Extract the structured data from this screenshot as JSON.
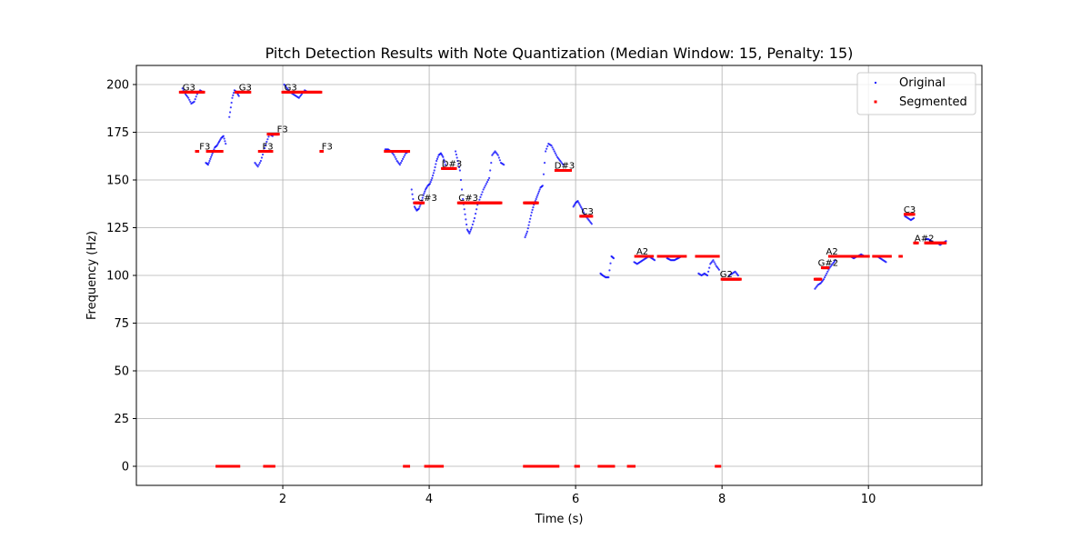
{
  "chart_data": {
    "type": "scatter",
    "title": "Pitch Detection Results with Note Quantization (Median Window: 15, Penalty: 15)",
    "xlabel": "Time (s)",
    "ylabel": "Frequency (Hz)",
    "xlim": [
      0.0,
      11.55
    ],
    "ylim": [
      -10,
      210
    ],
    "xticks": [
      2,
      4,
      6,
      8,
      10
    ],
    "yticks": [
      0,
      25,
      50,
      75,
      100,
      125,
      150,
      175,
      200
    ],
    "grid": true,
    "legend": {
      "placement": "upper-right"
    },
    "series": [
      {
        "name": "Original",
        "color": "#0000ff",
        "segments": [
          [
            [
              0.63,
              198
            ],
            [
              0.67,
              195
            ],
            [
              0.71,
              193
            ],
            [
              0.75,
              190
            ],
            [
              0.79,
              191
            ],
            [
              0.83,
              195
            ],
            [
              0.87,
              197
            ],
            [
              0.91,
              196
            ]
          ],
          [
            [
              0.95,
              159
            ],
            [
              0.98,
              158
            ],
            [
              1.01,
              161
            ],
            [
              1.04,
              164
            ],
            [
              1.07,
              167
            ],
            [
              1.1,
              168
            ],
            [
              1.13,
              170
            ],
            [
              1.16,
              172
            ],
            [
              1.19,
              173
            ],
            [
              1.22,
              169
            ]
          ],
          [
            [
              1.27,
              183
            ],
            [
              1.29,
              188
            ],
            [
              1.31,
              193
            ],
            [
              1.34,
              197
            ],
            [
              1.37,
              196
            ],
            [
              1.4,
              194
            ]
          ],
          [
            [
              1.62,
              159
            ],
            [
              1.66,
              157
            ],
            [
              1.7,
              160
            ],
            [
              1.74,
              165
            ],
            [
              1.78,
              170
            ],
            [
              1.82,
              174
            ],
            [
              1.86,
              173
            ]
          ],
          [
            [
              2.02,
              200
            ],
            [
              2.06,
              198
            ],
            [
              2.1,
              196
            ],
            [
              2.14,
              195
            ],
            [
              2.18,
              194
            ],
            [
              2.22,
              193
            ],
            [
              2.26,
              195
            ],
            [
              2.3,
              197
            ],
            [
              2.34,
              196
            ],
            [
              2.4,
              196
            ],
            [
              2.46,
              196
            ]
          ],
          [
            [
              3.4,
              166
            ],
            [
              3.44,
              166
            ],
            [
              3.48,
              165
            ],
            [
              3.52,
              163
            ],
            [
              3.56,
              160
            ],
            [
              3.6,
              158
            ],
            [
              3.64,
              161
            ],
            [
              3.68,
              164
            ],
            [
              3.72,
              165
            ]
          ],
          [
            [
              3.76,
              145
            ],
            [
              3.78,
              140
            ],
            [
              3.8,
              136
            ],
            [
              3.83,
              134
            ],
            [
              3.86,
              135
            ],
            [
              3.89,
              138
            ],
            [
              3.92,
              142
            ],
            [
              3.95,
              145
            ],
            [
              3.98,
              147
            ],
            [
              4.01,
              148
            ],
            [
              4.04,
              151
            ],
            [
              4.07,
              155
            ],
            [
              4.1,
              160
            ],
            [
              4.13,
              163
            ],
            [
              4.16,
              164
            ],
            [
              4.19,
              162
            ],
            [
              4.22,
              158
            ]
          ],
          [
            [
              4.36,
              165
            ],
            [
              4.39,
              160
            ],
            [
              4.42,
              155
            ],
            [
              4.46,
              140
            ],
            [
              4.49,
              132
            ],
            [
              4.52,
              124
            ],
            [
              4.55,
              122
            ],
            [
              4.58,
              125
            ],
            [
              4.62,
              130
            ],
            [
              4.66,
              137
            ],
            [
              4.7,
              141
            ],
            [
              4.74,
              145
            ],
            [
              4.78,
              148
            ],
            [
              4.82,
              151
            ],
            [
              4.86,
              163
            ],
            [
              4.9,
              165
            ],
            [
              4.94,
              163
            ],
            [
              4.98,
              159
            ],
            [
              5.02,
              158
            ]
          ],
          [
            [
              5.31,
              120
            ],
            [
              5.34,
              123
            ],
            [
              5.37,
              128
            ],
            [
              5.4,
              133
            ],
            [
              5.43,
              137
            ],
            [
              5.46,
              140
            ],
            [
              5.49,
              143
            ],
            [
              5.52,
              146
            ],
            [
              5.55,
              147
            ],
            [
              5.59,
              165
            ],
            [
              5.63,
              169
            ],
            [
              5.67,
              168
            ],
            [
              5.71,
              165
            ],
            [
              5.75,
              162
            ],
            [
              5.79,
              160
            ],
            [
              5.83,
              158
            ]
          ],
          [
            [
              5.97,
              136
            ],
            [
              6.0,
              138
            ],
            [
              6.03,
              139
            ],
            [
              6.1,
              134
            ],
            [
              6.14,
              131
            ],
            [
              6.18,
              129
            ],
            [
              6.22,
              127
            ]
          ],
          [
            [
              6.34,
              101
            ],
            [
              6.37,
              100
            ],
            [
              6.41,
              99
            ],
            [
              6.45,
              99
            ],
            [
              6.49,
              110
            ],
            [
              6.52,
              109
            ]
          ],
          [
            [
              6.8,
              107
            ],
            [
              6.84,
              106
            ],
            [
              6.88,
              107
            ],
            [
              6.92,
              108
            ],
            [
              6.96,
              109
            ],
            [
              7.0,
              110
            ],
            [
              7.04,
              109
            ],
            [
              7.08,
              108
            ]
          ],
          [
            [
              7.25,
              109
            ],
            [
              7.3,
              108
            ],
            [
              7.35,
              108
            ],
            [
              7.4,
              109
            ],
            [
              7.45,
              110
            ],
            [
              7.5,
              110
            ]
          ],
          [
            [
              7.68,
              101
            ],
            [
              7.72,
              100
            ],
            [
              7.76,
              101
            ],
            [
              7.8,
              100
            ],
            [
              7.84,
              106
            ],
            [
              7.88,
              108
            ],
            [
              7.92,
              105
            ],
            [
              7.96,
              103
            ]
          ],
          [
            [
              8.1,
              100
            ],
            [
              8.14,
              101
            ],
            [
              8.18,
              102
            ],
            [
              8.22,
              100
            ]
          ],
          [
            [
              9.27,
              93
            ],
            [
              9.31,
              95
            ],
            [
              9.35,
              96
            ],
            [
              9.39,
              98
            ],
            [
              9.43,
              101
            ],
            [
              9.47,
              104
            ],
            [
              9.51,
              106
            ],
            [
              9.55,
              108
            ]
          ],
          [
            [
              9.7,
              110
            ],
            [
              9.75,
              110
            ],
            [
              9.8,
              109
            ],
            [
              9.85,
              110
            ],
            [
              9.9,
              111
            ],
            [
              9.95,
              110
            ]
          ],
          [
            [
              10.12,
              110
            ],
            [
              10.16,
              109
            ],
            [
              10.2,
              108
            ],
            [
              10.24,
              107
            ]
          ],
          [
            [
              10.5,
              131
            ],
            [
              10.54,
              130
            ],
            [
              10.58,
              129
            ],
            [
              10.62,
              130
            ]
          ],
          [
            [
              10.78,
              119
            ],
            [
              10.82,
              119
            ],
            [
              10.86,
              118
            ],
            [
              10.9,
              117
            ],
            [
              10.94,
              117
            ],
            [
              10.98,
              116
            ],
            [
              11.02,
              117
            ],
            [
              11.06,
              118
            ]
          ]
        ]
      },
      {
        "name": "Segmented",
        "color": "#ff0000",
        "segments": [
          [
            [
              0.6,
              196
            ],
            [
              0.92,
              196
            ]
          ],
          [
            [
              0.82,
              165
            ],
            [
              0.84,
              165
            ]
          ],
          [
            [
              0.97,
              165
            ],
            [
              1.17,
              165
            ]
          ],
          [
            [
              1.1,
              0
            ],
            [
              1.4,
              0
            ]
          ],
          [
            [
              1.36,
              196
            ],
            [
              1.55,
              196
            ]
          ],
          [
            [
              1.68,
              165
            ],
            [
              1.85,
              165
            ]
          ],
          [
            [
              1.75,
              0
            ],
            [
              1.88,
              0
            ]
          ],
          [
            [
              1.8,
              174
            ],
            [
              1.94,
              174
            ]
          ],
          [
            [
              2.0,
              196
            ],
            [
              2.52,
              196
            ]
          ],
          [
            [
              2.52,
              165
            ],
            [
              2.54,
              165
            ]
          ],
          [
            [
              3.4,
              165
            ],
            [
              3.72,
              165
            ]
          ],
          [
            [
              3.66,
              0
            ],
            [
              3.72,
              0
            ]
          ],
          [
            [
              3.8,
              138
            ],
            [
              3.92,
              138
            ]
          ],
          [
            [
              3.95,
              0
            ],
            [
              4.18,
              0
            ]
          ],
          [
            [
              4.18,
              156
            ],
            [
              4.36,
              156
            ]
          ],
          [
            [
              4.4,
              138
            ],
            [
              4.98,
              138
            ]
          ],
          [
            [
              5.3,
              138
            ],
            [
              5.48,
              138
            ]
          ],
          [
            [
              5.3,
              0
            ],
            [
              5.76,
              0
            ]
          ],
          [
            [
              5.73,
              155
            ],
            [
              5.93,
              155
            ]
          ],
          [
            [
              6.0,
              0
            ],
            [
              6.04,
              0
            ]
          ],
          [
            [
              6.07,
              131
            ],
            [
              6.22,
              131
            ]
          ],
          [
            [
              6.32,
              0
            ],
            [
              6.52,
              0
            ]
          ],
          [
            [
              6.72,
              0
            ],
            [
              6.8,
              0
            ]
          ],
          [
            [
              6.82,
              110
            ],
            [
              7.05,
              110
            ]
          ],
          [
            [
              7.13,
              110
            ],
            [
              7.5,
              110
            ]
          ],
          [
            [
              7.65,
              110
            ],
            [
              7.95,
              110
            ]
          ],
          [
            [
              7.92,
              0
            ],
            [
              7.97,
              0
            ]
          ],
          [
            [
              8.0,
              98
            ],
            [
              8.25,
              98
            ]
          ],
          [
            [
              9.27,
              98
            ],
            [
              9.35,
              98
            ]
          ],
          [
            [
              9.37,
              104
            ],
            [
              9.45,
              104
            ]
          ],
          [
            [
              9.47,
              110
            ],
            [
              10.0,
              110
            ]
          ],
          [
            [
              10.07,
              110
            ],
            [
              10.3,
              110
            ]
          ],
          [
            [
              10.43,
              110
            ],
            [
              10.45,
              110
            ]
          ],
          [
            [
              10.5,
              132
            ],
            [
              10.62,
              132
            ]
          ],
          [
            [
              10.63,
              117
            ],
            [
              10.67,
              117
            ]
          ],
          [
            [
              10.78,
              117
            ],
            [
              11.05,
              117
            ]
          ]
        ]
      }
    ],
    "note_labels": [
      {
        "text": "G3",
        "x": 0.63,
        "y": 196
      },
      {
        "text": "F3",
        "x": 0.86,
        "y": 165
      },
      {
        "text": "G3",
        "x": 1.4,
        "y": 196
      },
      {
        "text": "F3",
        "x": 1.72,
        "y": 165
      },
      {
        "text": "F3",
        "x": 1.92,
        "y": 174
      },
      {
        "text": "G3",
        "x": 2.02,
        "y": 196
      },
      {
        "text": "F3",
        "x": 2.53,
        "y": 165
      },
      {
        "text": "C#3",
        "x": 3.84,
        "y": 138
      },
      {
        "text": "D#3",
        "x": 4.17,
        "y": 156
      },
      {
        "text": "C#3",
        "x": 4.4,
        "y": 138
      },
      {
        "text": "D#3",
        "x": 5.71,
        "y": 155
      },
      {
        "text": "C3",
        "x": 6.08,
        "y": 131
      },
      {
        "text": "A2",
        "x": 6.83,
        "y": 110
      },
      {
        "text": "G2",
        "x": 7.97,
        "y": 98
      },
      {
        "text": "G#2",
        "x": 9.31,
        "y": 104
      },
      {
        "text": "A2",
        "x": 9.42,
        "y": 110
      },
      {
        "text": "C3",
        "x": 10.48,
        "y": 132
      },
      {
        "text": "A#2",
        "x": 10.63,
        "y": 117
      }
    ]
  }
}
